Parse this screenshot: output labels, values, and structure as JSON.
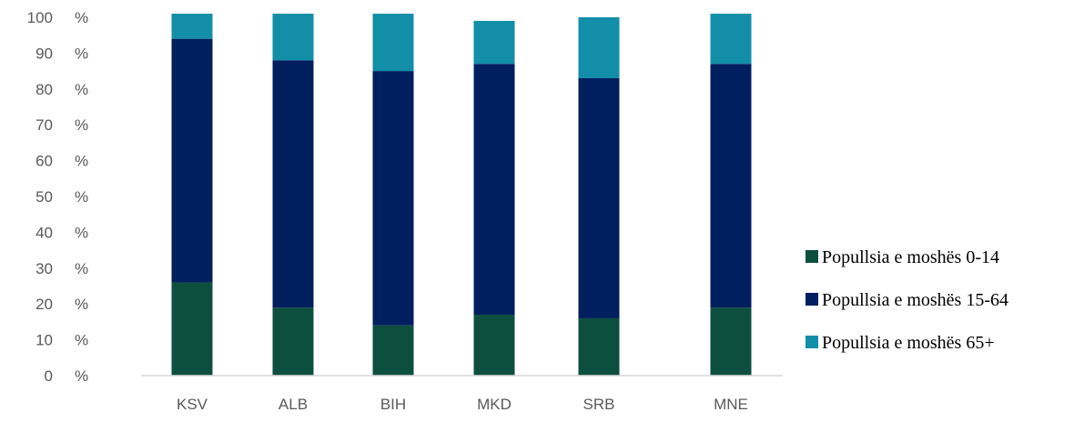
{
  "chart_data": {
    "type": "bar",
    "stacked": true,
    "categories": [
      "KSV",
      "ALB",
      "BIH",
      "MKD",
      "SRB",
      "MNE"
    ],
    "series": [
      {
        "name": "Popullsia e moshës 0-14",
        "values": [
          26,
          19,
          14,
          17,
          16,
          19
        ],
        "color": "#0d4f3f"
      },
      {
        "name": "Popullsia e moshës 15-64",
        "values": [
          68,
          69,
          71,
          70,
          67,
          68
        ],
        "color": "#001f5f"
      },
      {
        "name": "Popullsia e moshës 65+",
        "values": [
          7,
          13,
          16,
          12,
          17,
          14
        ],
        "color": "#138ea8"
      }
    ],
    "y_ticks": [
      {
        "value": 0,
        "label": "0 %"
      },
      {
        "value": 10,
        "label": "10 %"
      },
      {
        "value": 20,
        "label": "20 %"
      },
      {
        "value": 30,
        "label": "30 %"
      },
      {
        "value": 40,
        "label": "40 %"
      },
      {
        "value": 50,
        "label": "50 %"
      },
      {
        "value": 60,
        "label": "60 %"
      },
      {
        "value": 70,
        "label": "70 %"
      },
      {
        "value": 80,
        "label": "80 %"
      },
      {
        "value": 90,
        "label": "90 %"
      },
      {
        "value": 100,
        "label": "100 %"
      }
    ],
    "ylim": [
      0,
      100
    ],
    "grid": false,
    "legend_position": "right"
  }
}
